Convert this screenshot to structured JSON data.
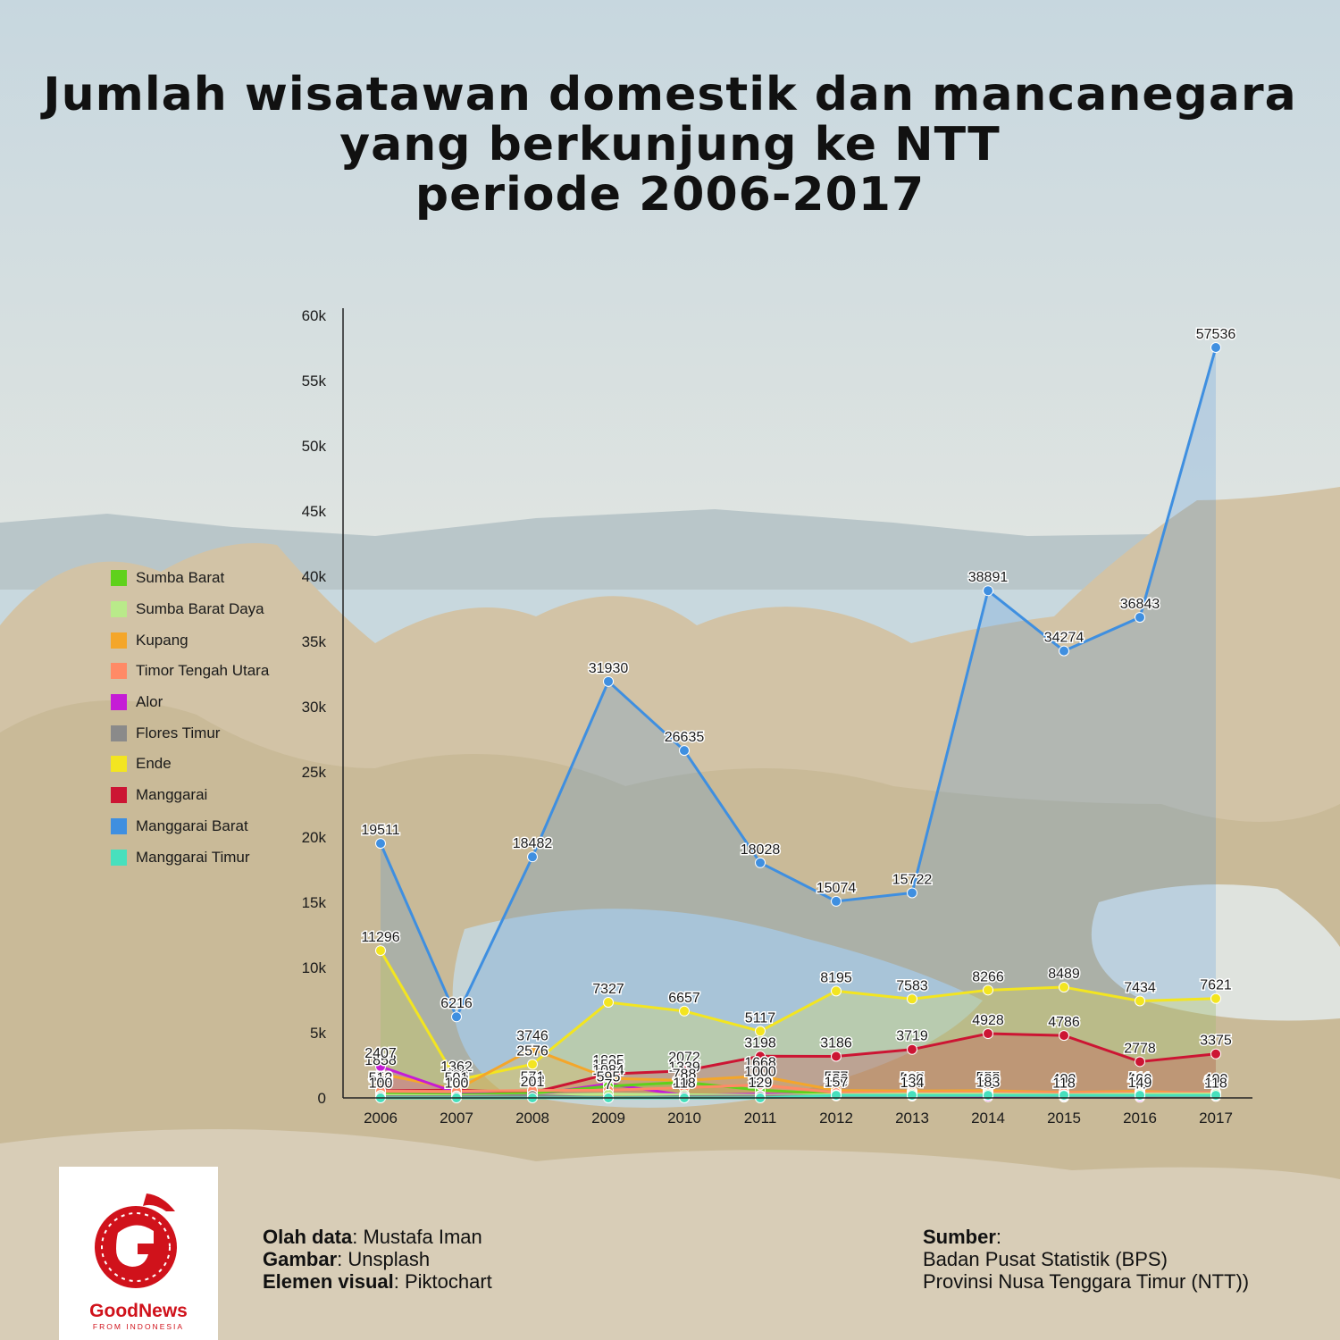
{
  "title_lines": [
    "Jumlah wisatawan domestik dan mancanegara",
    "yang berkunjung ke NTT",
    "periode 2006-2017"
  ],
  "credits": {
    "data_label": "Olah data",
    "data_value": ": Mustafa Iman",
    "image_label": "Gambar",
    "image_value": ": Unsplash",
    "visual_label": "Elemen visual",
    "visual_value": ": Piktochart"
  },
  "source": {
    "label": "Sumber",
    "suffix": ":",
    "line1": "Badan Pusat Statistik (BPS)",
    "line2": "Provinsi Nusa Tenggara Timur (NTT))"
  },
  "logo": {
    "name": "GoodNews",
    "sub": "FROM INDONESIA",
    "color": "#d0121b"
  },
  "chart_data": {
    "type": "area",
    "title": "Jumlah wisatawan domestik dan mancanegara yang berkunjung ke NTT periode 2006-2017",
    "xlabel": "",
    "ylabel": "",
    "ylim": [
      0,
      60000
    ],
    "y_ticks": [
      0,
      5000,
      10000,
      15000,
      20000,
      25000,
      30000,
      35000,
      40000,
      45000,
      50000,
      55000,
      60000
    ],
    "y_tick_labels": [
      "0",
      "5k",
      "10k",
      "15k",
      "20k",
      "25k",
      "30k",
      "35k",
      "40k",
      "45k",
      "50k",
      "55k",
      "60k"
    ],
    "categories": [
      "2006",
      "2007",
      "2008",
      "2009",
      "2010",
      "2011",
      "2012",
      "2013",
      "2014",
      "2015",
      "2016",
      "2017"
    ],
    "legend_position": "left",
    "grid": false,
    "series": [
      {
        "name": "Sumba Barat",
        "color": "#5fd11c",
        "values": [
          300,
          250,
          350,
          900,
          1200,
          600,
          300,
          300,
          300,
          300,
          300,
          300
        ]
      },
      {
        "name": "Sumba Barat Daya",
        "color": "#b9ea8a",
        "values": [
          200,
          150,
          200,
          300,
          250,
          200,
          250,
          300,
          300,
          250,
          300,
          311
        ]
      },
      {
        "name": "Kupang",
        "color": "#f4a62a",
        "values": [
          1858,
          638,
          3746,
          1505,
          1339,
          1668,
          577,
          527,
          555,
          424,
          511,
          311
        ]
      },
      {
        "name": "Timor Tengah Utara",
        "color": "#ff8a66",
        "values": [
          513,
          501,
          571,
          595,
          788,
          1000,
          400,
          400,
          400,
          400,
          400,
          400
        ]
      },
      {
        "name": "Alor",
        "color": "#c51cd6",
        "values": [
          2407,
          400,
          231,
          1084,
          200,
          300,
          200,
          150,
          83,
          60,
          49,
          118
        ]
      },
      {
        "name": "Flores Timur",
        "color": "#8a8a8a",
        "values": [
          100,
          100,
          201,
          7,
          118,
          129,
          157,
          134,
          183,
          118,
          149,
          118
        ]
      },
      {
        "name": "Ende",
        "color": "#f3e520",
        "values": [
          11296,
          1362,
          2576,
          7327,
          6657,
          5117,
          8195,
          7583,
          8266,
          8489,
          7434,
          7621
        ]
      },
      {
        "name": "Manggarai",
        "color": "#cc1533",
        "values": [
          550,
          600,
          400,
          1835,
          2072,
          3198,
          3186,
          3719,
          4928,
          4786,
          2778,
          3375
        ]
      },
      {
        "name": "Manggarai Barat",
        "color": "#3f8fe0",
        "values": [
          19511,
          6216,
          18482,
          31930,
          26635,
          18028,
          15074,
          15722,
          38891,
          34274,
          36843,
          57536
        ]
      },
      {
        "name": "Manggarai Timur",
        "color": "#47e0bd",
        "values": [
          0,
          0,
          0,
          0,
          0,
          0,
          200,
          200,
          200,
          200,
          200,
          200
        ]
      }
    ],
    "labeled_series": [
      "Manggarai Barat",
      "Ende",
      "Manggarai",
      "Kupang",
      "Timor Tengah Utara",
      "Alor",
      "Flores Timur"
    ]
  }
}
